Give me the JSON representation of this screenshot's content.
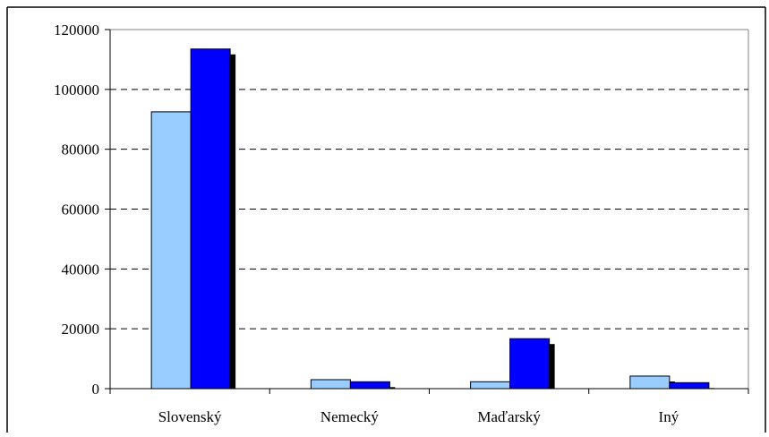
{
  "chart_data": {
    "type": "bar",
    "title": "",
    "xlabel": "",
    "ylabel": "",
    "categories": [
      "Slovenský",
      "Nemecký",
      "Maďarský",
      "Iný"
    ],
    "series": [
      {
        "values": [
          92500,
          3000,
          2300,
          4200
        ],
        "color": "#99ccff"
      },
      {
        "values": [
          113500,
          2300,
          16700,
          2000
        ],
        "color": "#0000ff"
      }
    ],
    "ylim": [
      0,
      120000
    ],
    "yticks": [
      0,
      20000,
      40000,
      60000,
      80000,
      100000,
      120000
    ],
    "ytick_labels": [
      "0",
      "20000",
      "40000",
      "60000",
      "80000",
      "100000",
      "120000"
    ],
    "grid": "horizontal dashed",
    "legend": "none",
    "bar_style": "3d shadow"
  }
}
